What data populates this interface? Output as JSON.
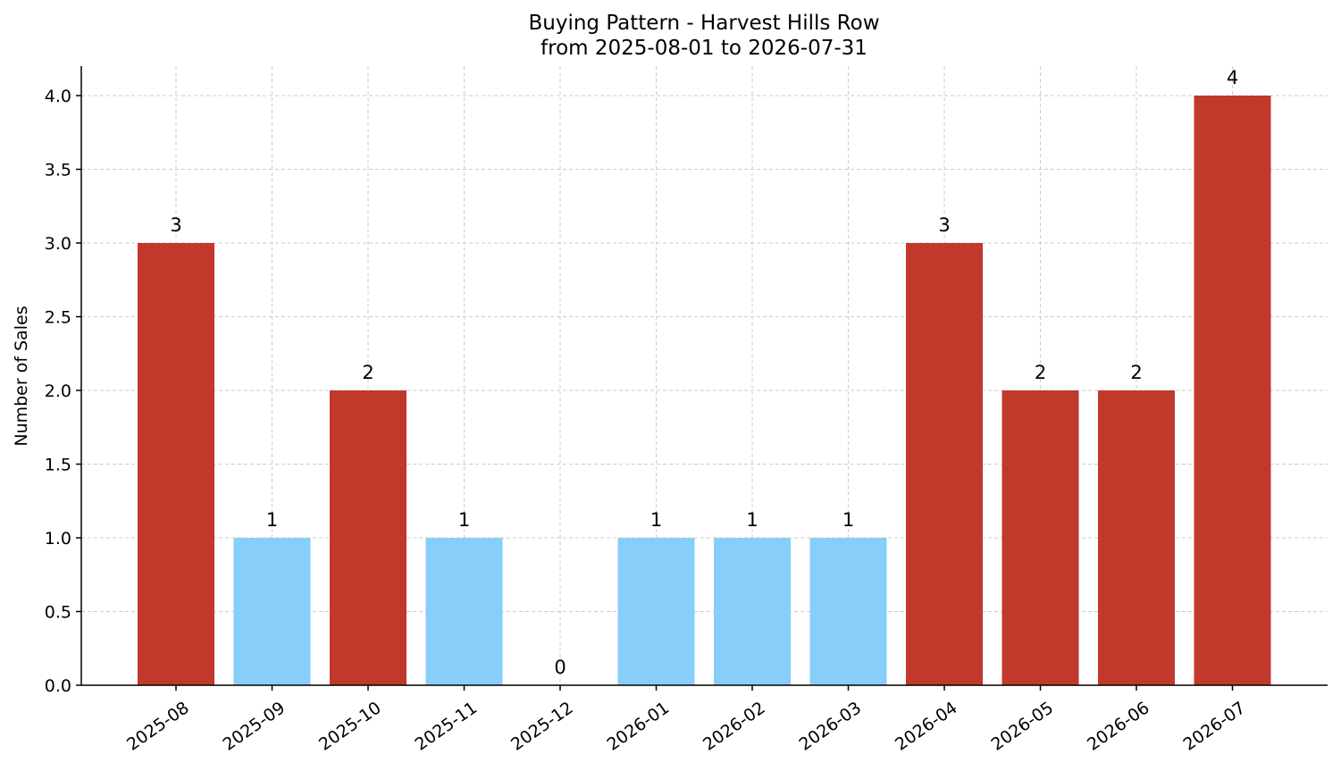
{
  "chart_data": {
    "type": "bar",
    "title": "Buying Pattern - Harvest Hills Row",
    "subtitle": "from 2025-08-01 to 2026-07-31",
    "xlabel": "",
    "ylabel": "Number of Sales",
    "categories": [
      "2025-08",
      "2025-09",
      "2025-10",
      "2025-11",
      "2025-12",
      "2026-01",
      "2026-02",
      "2026-03",
      "2026-04",
      "2026-05",
      "2026-06",
      "2026-07"
    ],
    "values": [
      3,
      1,
      2,
      1,
      0,
      1,
      1,
      1,
      3,
      2,
      2,
      4
    ],
    "data_labels": [
      "3",
      "1",
      "2",
      "1",
      "0",
      "1",
      "1",
      "1",
      "3",
      "2",
      "2",
      "4"
    ],
    "ylim": [
      0,
      4.2
    ],
    "yticks": [
      0.0,
      0.5,
      1.0,
      1.5,
      2.0,
      2.5,
      3.0,
      3.5,
      4.0
    ],
    "ytick_labels": [
      "0.0",
      "0.5",
      "1.0",
      "1.5",
      "2.0",
      "2.5",
      "3.0",
      "3.5",
      "4.0"
    ],
    "grid": true,
    "colors": {
      "high": "#c0392b",
      "low": "#87cefa"
    },
    "color_threshold": 2
  }
}
